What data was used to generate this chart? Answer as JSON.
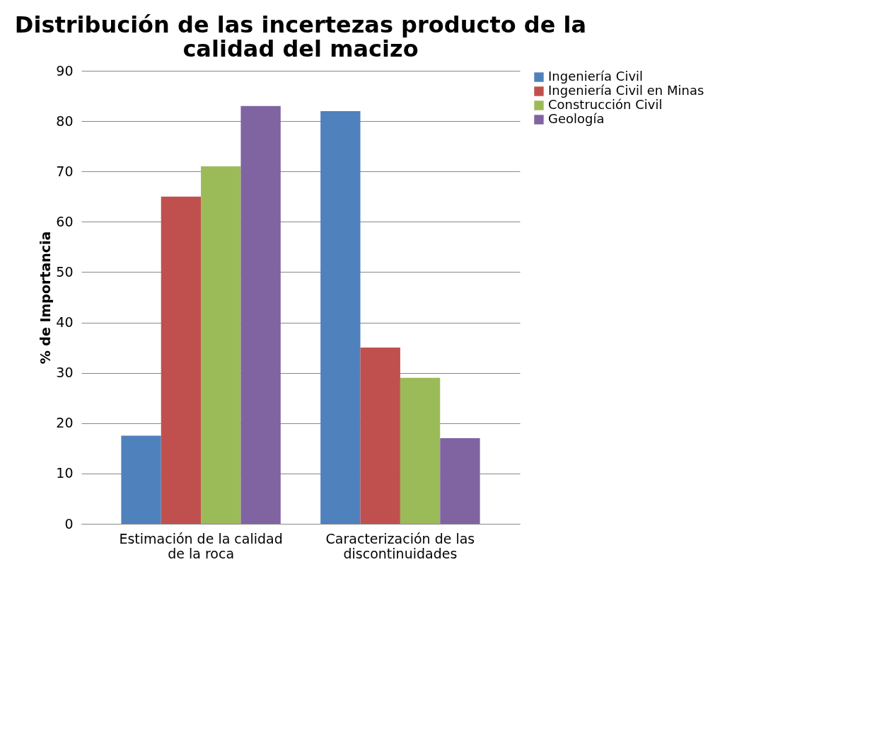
{
  "chart_data": {
    "type": "bar",
    "title": [
      "Distribución de las incertezas producto de la",
      "calidad del macizo"
    ],
    "ylabel": "% de Importancia",
    "categories": [
      [
        "Estimación de la calidad",
        "de la roca"
      ],
      [
        "Caracterización de las",
        "discontinuidades"
      ]
    ],
    "series": [
      {
        "name": "Ingeniería Civil",
        "color": "#4f81bd",
        "values": [
          17.5,
          82
        ]
      },
      {
        "name": "Ingeniería Civil en Minas",
        "color": "#c0504d",
        "values": [
          65,
          35
        ]
      },
      {
        "name": "Construcción Civil",
        "color": "#9bbb59",
        "values": [
          71,
          29
        ]
      },
      {
        "name": "Geología",
        "color": "#8064a2",
        "values": [
          83,
          17
        ]
      }
    ],
    "ylim": [
      0,
      90
    ],
    "yticks": [
      0,
      10,
      20,
      30,
      40,
      50,
      60,
      70,
      80,
      90
    ],
    "grid": "y",
    "legend": "right"
  }
}
